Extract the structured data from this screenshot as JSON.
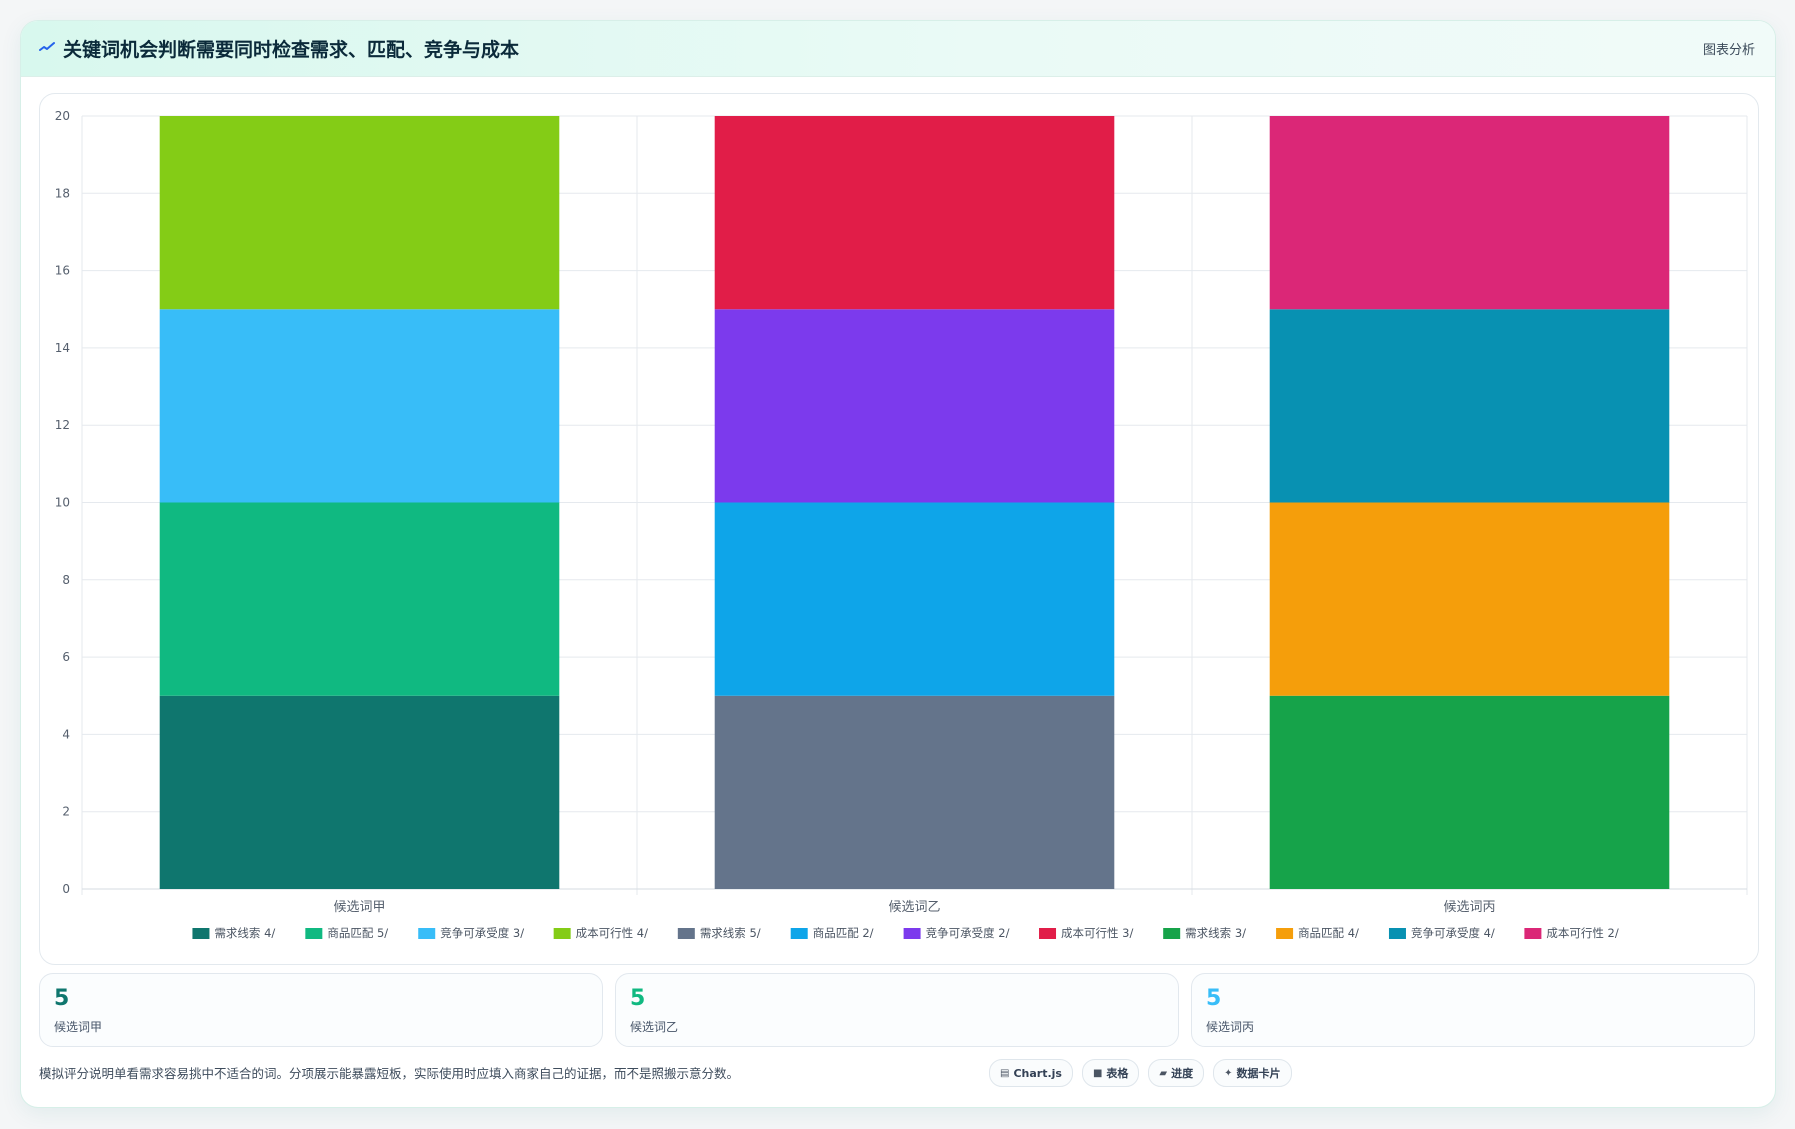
{
  "header": {
    "title": "关键词机会判断需要同时检查需求、匹配、竞争与成本",
    "link": "图表分析",
    "icon": "trend-line-icon"
  },
  "chart_data": {
    "type": "bar",
    "stacked": true,
    "categories": [
      "候选词甲",
      "候选词乙",
      "候选词丙"
    ],
    "ylim": [
      0,
      20
    ],
    "yticks": [
      0,
      2,
      4,
      6,
      8,
      10,
      12,
      14,
      16,
      18,
      20
    ],
    "grid": true,
    "legend_position": "bottom",
    "series": [
      {
        "name": "需求线索 4/",
        "color": "#0f766e",
        "values": [
          5,
          0,
          0
        ]
      },
      {
        "name": "商品匹配 5/",
        "color": "#10b981",
        "values": [
          5,
          0,
          0
        ]
      },
      {
        "name": "竞争可承受度 3/",
        "color": "#38bdf8",
        "values": [
          5,
          0,
          0
        ]
      },
      {
        "name": "成本可行性 4/",
        "color": "#84cc16",
        "values": [
          5,
          0,
          0
        ]
      },
      {
        "name": "需求线索 5/",
        "color": "#64748b",
        "values": [
          0,
          5,
          0
        ]
      },
      {
        "name": "商品匹配 2/",
        "color": "#0ea5e9",
        "values": [
          0,
          5,
          0
        ]
      },
      {
        "name": "竞争可承受度 2/",
        "color": "#7c3aed",
        "values": [
          0,
          5,
          0
        ]
      },
      {
        "name": "成本可行性 3/",
        "color": "#e11d48",
        "values": [
          0,
          5,
          0
        ]
      },
      {
        "name": "需求线索 3/",
        "color": "#16a34a",
        "values": [
          0,
          0,
          5
        ]
      },
      {
        "name": "商品匹配 4/",
        "color": "#f59e0b",
        "values": [
          0,
          0,
          5
        ]
      },
      {
        "name": "竞争可承受度 4/",
        "color": "#0891b2",
        "values": [
          0,
          0,
          5
        ]
      },
      {
        "name": "成本可行性 2/",
        "color": "#db2777",
        "values": [
          0,
          0,
          5
        ]
      }
    ]
  },
  "stats": [
    {
      "value": "5",
      "label": "候选词甲",
      "color": "#0f766e"
    },
    {
      "value": "5",
      "label": "候选词乙",
      "color": "#10b981"
    },
    {
      "value": "5",
      "label": "候选词丙",
      "color": "#38bdf8"
    }
  ],
  "footnote": "模拟评分说明单看需求容易挑中不适合的词。分项展示能暴露短板，实际使用时应填入商家自己的证据，而不是照搬示意分数。",
  "tags": [
    {
      "icon": "chart-icon",
      "glyph": "▤",
      "label": "Chart.js"
    },
    {
      "icon": "table-icon",
      "glyph": "■",
      "label": "表格"
    },
    {
      "icon": "progress-icon",
      "glyph": "▰",
      "label": "进度"
    },
    {
      "icon": "sparkle-icon",
      "glyph": "✦",
      "label": "数据卡片"
    }
  ]
}
